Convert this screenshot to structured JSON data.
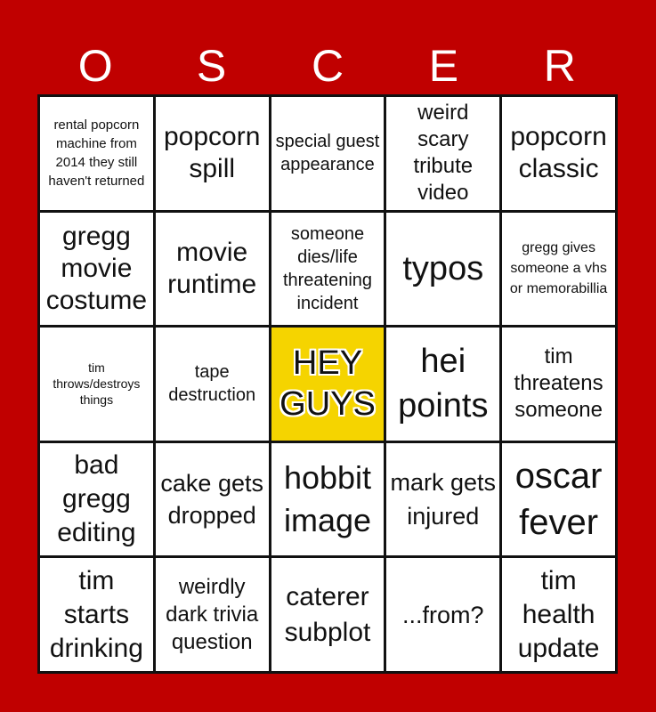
{
  "header": [
    "O",
    "S",
    "C",
    "E",
    "R"
  ],
  "free_color": "#f5d400",
  "background_color": "#c00000",
  "cells": [
    "rental popcorn machine from 2014 they still haven't returned",
    "popcorn spill",
    "special guest appearance",
    "weird scary tribute video",
    "popcorn classic",
    "gregg movie costume",
    "movie runtime",
    "someone dies/life threatening incident",
    "typos",
    "gregg gives someone a vhs or memorabillia",
    "tim throws/destroys things",
    "tape destruction",
    "HEY GUYS",
    "hei points",
    "tim threatens someone",
    "bad gregg editing",
    "cake gets dropped",
    "hobbit image",
    "mark gets injured",
    "oscar fever",
    "tim starts drinking",
    "weirdly dark trivia question",
    "caterer subplot",
    "...from?",
    "tim health update"
  ]
}
